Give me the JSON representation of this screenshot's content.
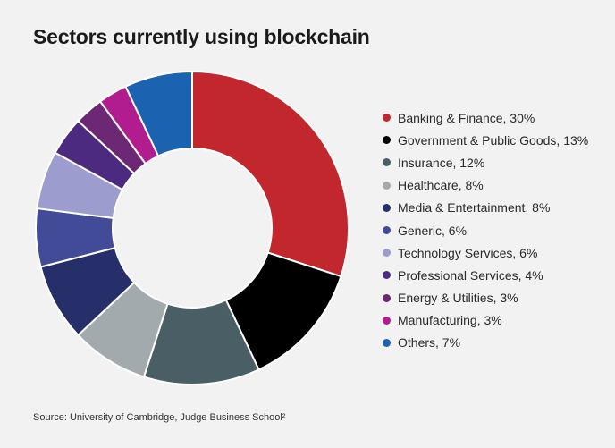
{
  "title": "Sectors currently using blockchain",
  "source": "Source: University of Cambridge, Judge Business School²",
  "chart_data": {
    "type": "pie",
    "subtype": "donut",
    "legend_position": "right",
    "slices": [
      {
        "label": "Banking & Finance, 30%",
        "name": "Banking & Finance",
        "value": 30,
        "color": "#c1272d"
      },
      {
        "label": "Government & Public Goods, 13%",
        "name": "Government & Public Goods",
        "value": 13,
        "color": "#000000"
      },
      {
        "label": "Insurance, 12%",
        "name": "Insurance",
        "value": 12,
        "color": "#4a5e66"
      },
      {
        "label": "Healthcare, 8%",
        "name": "Healthcare",
        "value": 8,
        "color": "#a3aaad"
      },
      {
        "label": "Media & Entertainment, 8%",
        "name": "Media & Entertainment",
        "value": 8,
        "color": "#262f69"
      },
      {
        "label": "Generic, 6%",
        "name": "Generic",
        "value": 6,
        "color": "#414b97"
      },
      {
        "label": "Technology Services, 6%",
        "name": "Technology Services",
        "value": 6,
        "color": "#9c9ccf"
      },
      {
        "label": "Professional Services, 4%",
        "name": "Professional Services",
        "value": 4,
        "color": "#4b2a7f"
      },
      {
        "label": "Energy & Utilities, 3%",
        "name": "Energy & Utilities",
        "value": 3,
        "color": "#6c2775"
      },
      {
        "label": "Manufacturing, 3%",
        "name": "Manufacturing",
        "value": 3,
        "color": "#b11c8e"
      },
      {
        "label": "Others, 7%",
        "name": "Others",
        "value": 7,
        "color": "#1b63b0"
      }
    ]
  }
}
